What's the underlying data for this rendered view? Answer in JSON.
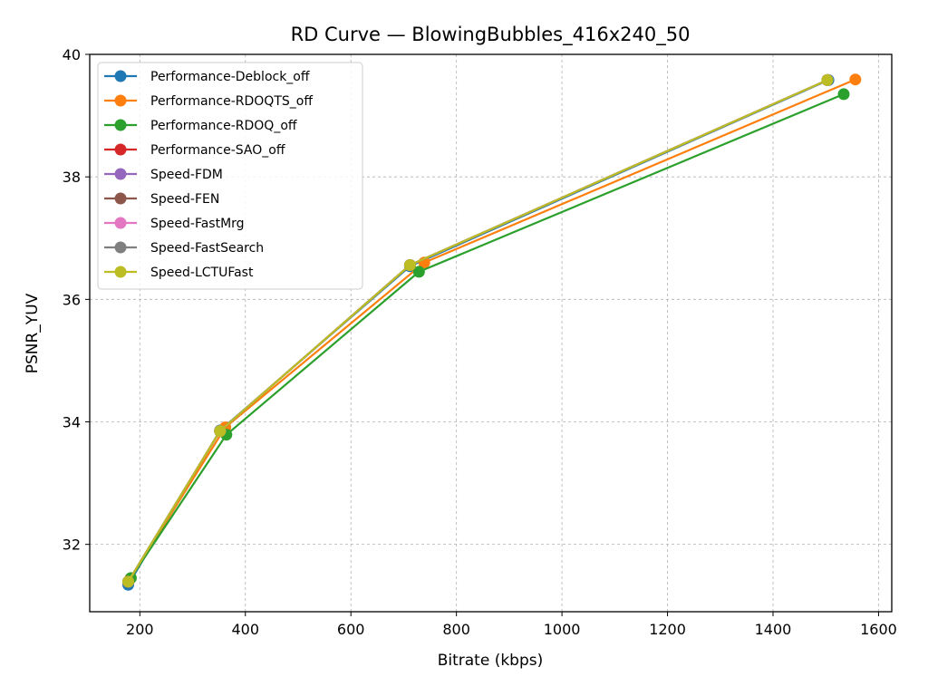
{
  "chart_data": {
    "type": "line",
    "title": "RD Curve — BlowingBubbles_416x240_50",
    "xlabel": "Bitrate (kbps)",
    "ylabel": "PSNR_YUV",
    "xlim": [
      105,
      1625
    ],
    "ylim": [
      30.9,
      40.0
    ],
    "xticks": [
      200,
      400,
      600,
      800,
      1000,
      1200,
      1400,
      1600
    ],
    "yticks": [
      32,
      34,
      36,
      38,
      40
    ],
    "grid": true,
    "legend_position": "top-left",
    "series": [
      {
        "name": "Performance-Deblock_off",
        "color": "#1f77b4",
        "x": [
          178,
          352,
          712,
          1505
        ],
        "y": [
          31.34,
          33.86,
          36.54,
          39.58
        ]
      },
      {
        "name": "Performance-RDOQTS_off",
        "color": "#ff7f0e",
        "x": [
          182,
          362,
          739,
          1556
        ],
        "y": [
          31.44,
          33.91,
          36.6,
          39.59
        ]
      },
      {
        "name": "Performance-RDOQ_off",
        "color": "#2ca02c",
        "x": [
          183,
          364,
          729,
          1534
        ],
        "y": [
          31.45,
          33.79,
          36.45,
          39.35
        ]
      },
      {
        "name": "Performance-SAO_off",
        "color": "#d62728",
        "x": [
          178,
          352,
          712,
          1503
        ],
        "y": [
          31.39,
          33.85,
          36.56,
          39.58
        ]
      },
      {
        "name": "Speed-FDM",
        "color": "#9467bd",
        "x": [
          178,
          352,
          712,
          1503
        ],
        "y": [
          31.39,
          33.85,
          36.56,
          39.58
        ]
      },
      {
        "name": "Speed-FEN",
        "color": "#8c564b",
        "x": [
          178,
          352,
          712,
          1503
        ],
        "y": [
          31.39,
          33.85,
          36.56,
          39.58
        ]
      },
      {
        "name": "Speed-FastMrg",
        "color": "#e377c2",
        "x": [
          178,
          352,
          712,
          1503
        ],
        "y": [
          31.39,
          33.85,
          36.56,
          39.58
        ]
      },
      {
        "name": "Speed-FastSearch",
        "color": "#7f7f7f",
        "x": [
          178,
          352,
          712,
          1503
        ],
        "y": [
          31.39,
          33.85,
          36.56,
          39.58
        ]
      },
      {
        "name": "Speed-LCTUFast",
        "color": "#bcbd22",
        "x": [
          178,
          352,
          712,
          1503
        ],
        "y": [
          31.39,
          33.85,
          36.56,
          39.58
        ]
      }
    ]
  }
}
